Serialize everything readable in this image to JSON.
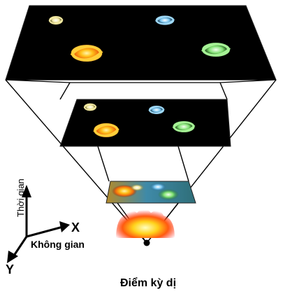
{
  "axes": {
    "y_axis_label": "Thời gian",
    "x_axis_label": "Không gian",
    "x_letter": "X",
    "y_letter": "Y"
  },
  "singularity_label": "Điểm kỳ dị",
  "colors": {
    "panel": "#000000",
    "outline": "#000000",
    "galaxy_yellow": "#f3e9a2",
    "galaxy_blue": "#79c6f0",
    "galaxy_orange": "#f7a11a",
    "galaxy_green": "#7ee070"
  }
}
